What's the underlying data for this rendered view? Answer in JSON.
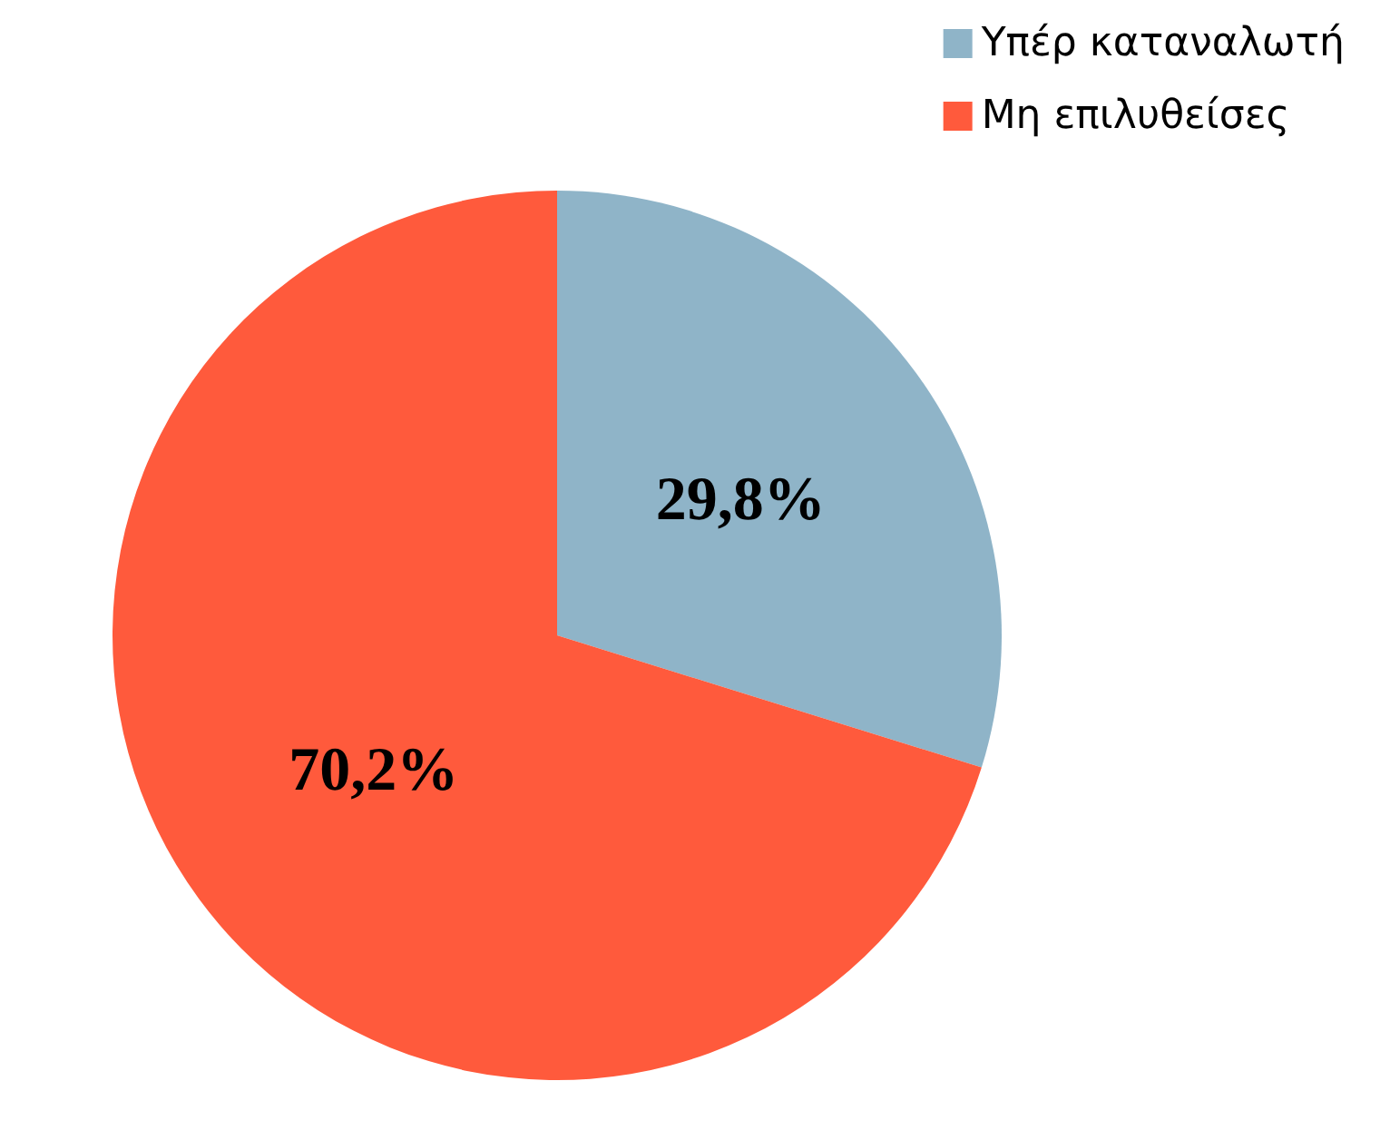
{
  "chart_data": {
    "type": "pie",
    "categories": [
      "Υπέρ καταναλωτή",
      "Μη επιλυθείσες"
    ],
    "values": [
      29.8,
      70.2
    ],
    "value_labels": [
      "29,8%",
      "70,2%"
    ],
    "colors": [
      "#8fb4c8",
      "#ff5a3c"
    ],
    "legend": "top right"
  }
}
